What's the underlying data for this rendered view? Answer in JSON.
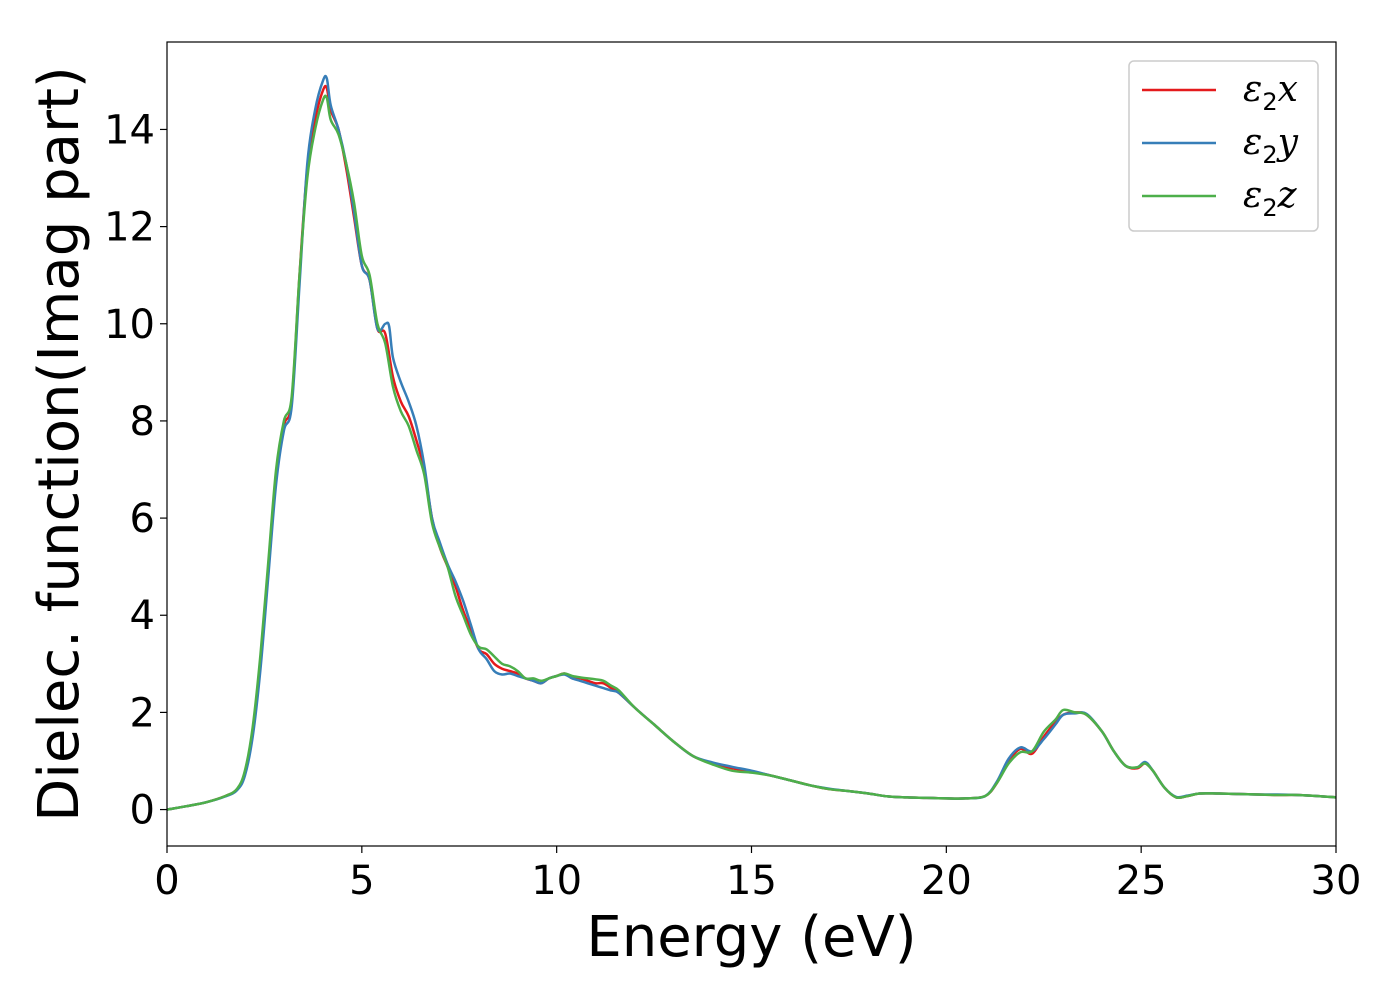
{
  "chart_data": {
    "type": "line",
    "title": "",
    "xlabel": "Energy (eV)",
    "ylabel": "Dielec. function(Imag part)",
    "xlim": [
      0,
      30
    ],
    "ylim": [
      -0.75,
      15.8
    ],
    "xticks": [
      0,
      5,
      10,
      15,
      20,
      25,
      30
    ],
    "yticks": [
      0,
      2,
      4,
      6,
      8,
      10,
      12,
      14
    ],
    "grid": false,
    "legend_position": "top-right",
    "series": [
      {
        "name": "ε2x",
        "legend": {
          "base": "ε",
          "sub": "2",
          "axis": "x"
        },
        "color": "#e41a1c",
        "x": [
          0,
          0.5,
          1.0,
          1.5,
          1.8,
          2.0,
          2.2,
          2.4,
          2.6,
          2.8,
          3.0,
          3.2,
          3.4,
          3.6,
          3.8,
          4.0,
          4.1,
          4.2,
          4.4,
          4.6,
          4.8,
          5.0,
          5.2,
          5.4,
          5.6,
          5.8,
          6.0,
          6.2,
          6.4,
          6.6,
          6.8,
          7.0,
          7.2,
          7.4,
          7.6,
          7.8,
          8.0,
          8.2,
          8.4,
          8.6,
          8.8,
          9.0,
          9.2,
          9.4,
          9.6,
          9.8,
          10.0,
          10.2,
          10.4,
          10.6,
          10.8,
          11.0,
          11.2,
          11.4,
          11.6,
          12.0,
          12.5,
          13.0,
          13.5,
          14.0,
          14.5,
          15.0,
          15.5,
          16.0,
          16.5,
          17.0,
          17.5,
          18.0,
          18.5,
          19.0,
          19.5,
          20.0,
          20.5,
          21.0,
          21.3,
          21.6,
          21.9,
          22.2,
          22.5,
          22.8,
          23.0,
          23.3,
          23.6,
          24.0,
          24.3,
          24.6,
          24.9,
          25.1,
          25.3,
          25.6,
          25.9,
          26.2,
          26.5,
          27.0,
          27.5,
          28.0,
          28.5,
          29.0,
          29.5,
          30.0
        ],
        "y": [
          0.0,
          0.07,
          0.15,
          0.28,
          0.42,
          0.75,
          1.6,
          3.0,
          4.9,
          6.8,
          7.9,
          8.4,
          11.0,
          13.2,
          14.2,
          14.8,
          14.85,
          14.4,
          14.0,
          13.2,
          12.2,
          11.2,
          10.9,
          9.9,
          9.8,
          8.9,
          8.4,
          8.1,
          7.6,
          7.0,
          6.0,
          5.4,
          5.0,
          4.6,
          4.1,
          3.7,
          3.3,
          3.2,
          3.0,
          2.9,
          2.85,
          2.8,
          2.7,
          2.65,
          2.6,
          2.7,
          2.75,
          2.8,
          2.7,
          2.7,
          2.65,
          2.6,
          2.6,
          2.5,
          2.4,
          2.1,
          1.75,
          1.4,
          1.1,
          0.95,
          0.85,
          0.78,
          0.7,
          0.6,
          0.5,
          0.42,
          0.38,
          0.33,
          0.27,
          0.25,
          0.24,
          0.23,
          0.23,
          0.28,
          0.55,
          1.0,
          1.25,
          1.15,
          1.5,
          1.8,
          1.95,
          2.0,
          1.95,
          1.6,
          1.2,
          0.9,
          0.85,
          0.95,
          0.8,
          0.45,
          0.25,
          0.28,
          0.33,
          0.33,
          0.32,
          0.31,
          0.3,
          0.3,
          0.28,
          0.25
        ]
      },
      {
        "name": "ε2y",
        "legend": {
          "base": "ε",
          "sub": "2",
          "axis": "y"
        },
        "color": "#377eb8",
        "x": [
          0,
          0.5,
          1.0,
          1.5,
          1.8,
          2.0,
          2.2,
          2.4,
          2.6,
          2.8,
          3.0,
          3.2,
          3.4,
          3.6,
          3.8,
          4.0,
          4.1,
          4.2,
          4.4,
          4.6,
          4.8,
          5.0,
          5.2,
          5.4,
          5.6,
          5.7,
          5.8,
          6.0,
          6.2,
          6.4,
          6.6,
          6.8,
          7.0,
          7.2,
          7.4,
          7.6,
          7.8,
          8.0,
          8.2,
          8.4,
          8.6,
          8.8,
          9.0,
          9.2,
          9.4,
          9.6,
          9.8,
          10.0,
          10.2,
          10.4,
          10.6,
          10.8,
          11.0,
          11.2,
          11.4,
          11.6,
          12.0,
          12.5,
          13.0,
          13.5,
          14.0,
          14.5,
          15.0,
          15.5,
          16.0,
          16.5,
          17.0,
          17.5,
          18.0,
          18.5,
          19.0,
          19.5,
          20.0,
          20.5,
          21.0,
          21.3,
          21.6,
          21.9,
          22.2,
          22.5,
          22.8,
          23.0,
          23.3,
          23.6,
          24.0,
          24.3,
          24.6,
          24.9,
          25.1,
          25.3,
          25.6,
          25.9,
          26.2,
          26.5,
          27.0,
          27.5,
          28.0,
          28.5,
          29.0,
          29.5,
          30.0
        ],
        "y": [
          0.0,
          0.07,
          0.15,
          0.27,
          0.4,
          0.7,
          1.5,
          2.9,
          4.8,
          6.7,
          7.8,
          8.3,
          10.8,
          13.3,
          14.4,
          15.0,
          15.05,
          14.5,
          14.0,
          13.3,
          12.3,
          11.2,
          10.9,
          9.9,
          10.0,
          9.95,
          9.3,
          8.8,
          8.4,
          7.9,
          7.1,
          6.0,
          5.5,
          5.05,
          4.7,
          4.3,
          3.8,
          3.3,
          3.1,
          2.85,
          2.78,
          2.8,
          2.75,
          2.7,
          2.65,
          2.6,
          2.7,
          2.75,
          2.78,
          2.7,
          2.65,
          2.6,
          2.55,
          2.5,
          2.45,
          2.4,
          2.1,
          1.75,
          1.4,
          1.1,
          0.97,
          0.88,
          0.8,
          0.7,
          0.6,
          0.5,
          0.43,
          0.38,
          0.33,
          0.27,
          0.25,
          0.24,
          0.23,
          0.23,
          0.28,
          0.58,
          1.05,
          1.28,
          1.2,
          1.45,
          1.75,
          1.95,
          1.98,
          1.97,
          1.6,
          1.2,
          0.9,
          0.87,
          0.98,
          0.8,
          0.45,
          0.26,
          0.29,
          0.33,
          0.33,
          0.32,
          0.31,
          0.31,
          0.3,
          0.28,
          0.25
        ]
      },
      {
        "name": "ε2z",
        "legend": {
          "base": "ε",
          "sub": "2",
          "axis": "z"
        },
        "color": "#4daf4a",
        "x": [
          0,
          0.5,
          1.0,
          1.5,
          1.8,
          2.0,
          2.2,
          2.4,
          2.6,
          2.8,
          3.0,
          3.2,
          3.4,
          3.6,
          3.8,
          4.0,
          4.1,
          4.2,
          4.4,
          4.6,
          4.8,
          5.0,
          5.2,
          5.4,
          5.6,
          5.8,
          6.0,
          6.2,
          6.4,
          6.6,
          6.8,
          7.0,
          7.2,
          7.4,
          7.6,
          7.8,
          8.0,
          8.2,
          8.4,
          8.6,
          8.8,
          9.0,
          9.2,
          9.4,
          9.6,
          9.8,
          10.0,
          10.2,
          10.4,
          10.6,
          10.8,
          11.0,
          11.2,
          11.4,
          11.6,
          12.0,
          12.5,
          13.0,
          13.5,
          14.0,
          14.5,
          15.0,
          15.5,
          16.0,
          16.5,
          17.0,
          17.5,
          18.0,
          18.5,
          19.0,
          19.5,
          20.0,
          20.5,
          21.0,
          21.3,
          21.6,
          21.9,
          22.2,
          22.5,
          22.8,
          23.0,
          23.3,
          23.6,
          24.0,
          24.3,
          24.6,
          24.9,
          25.1,
          25.3,
          25.6,
          25.9,
          26.2,
          26.5,
          27.0,
          27.5,
          28.0,
          28.5,
          29.0,
          29.5,
          30.0
        ],
        "y": [
          0.0,
          0.07,
          0.15,
          0.28,
          0.43,
          0.8,
          1.7,
          3.2,
          5.1,
          7.0,
          8.0,
          8.5,
          11.0,
          13.0,
          14.0,
          14.6,
          14.65,
          14.2,
          13.9,
          13.3,
          12.5,
          11.4,
          11.0,
          10.0,
          9.6,
          8.7,
          8.2,
          7.9,
          7.4,
          6.9,
          5.9,
          5.4,
          5.0,
          4.4,
          4.0,
          3.6,
          3.35,
          3.3,
          3.15,
          3.0,
          2.95,
          2.85,
          2.7,
          2.7,
          2.65,
          2.7,
          2.75,
          2.8,
          2.75,
          2.72,
          2.7,
          2.68,
          2.65,
          2.55,
          2.45,
          2.1,
          1.75,
          1.4,
          1.1,
          0.93,
          0.8,
          0.76,
          0.7,
          0.6,
          0.5,
          0.42,
          0.38,
          0.33,
          0.27,
          0.25,
          0.24,
          0.23,
          0.23,
          0.28,
          0.55,
          0.95,
          1.18,
          1.2,
          1.6,
          1.85,
          2.05,
          2.0,
          1.95,
          1.6,
          1.2,
          0.9,
          0.87,
          0.95,
          0.8,
          0.45,
          0.25,
          0.28,
          0.33,
          0.33,
          0.32,
          0.31,
          0.3,
          0.3,
          0.28,
          0.25
        ]
      }
    ]
  }
}
